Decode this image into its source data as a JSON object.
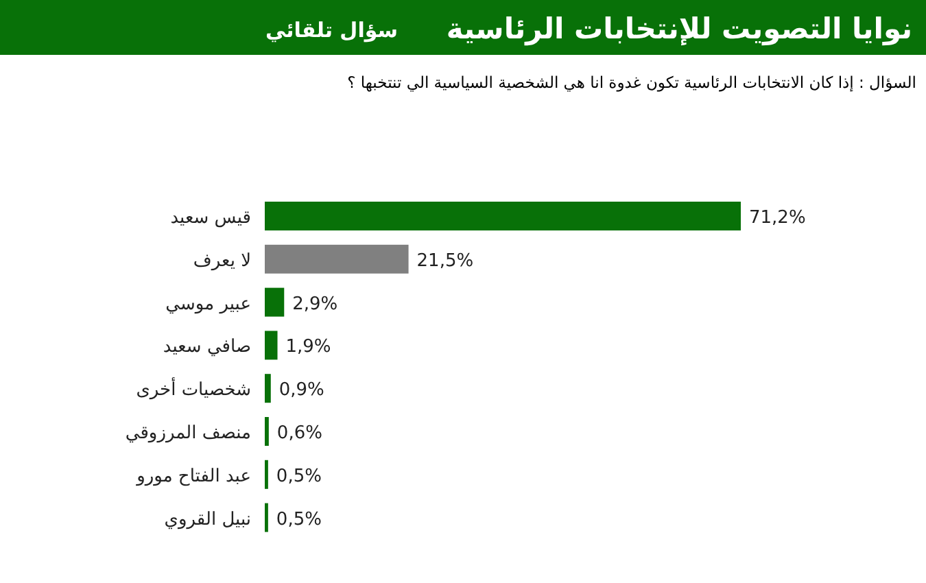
{
  "chart_data": {
    "type": "bar",
    "orientation": "horizontal",
    "title": "نوايا التصويت للإنتخابات الرئاسية",
    "subtitle": "السؤال : إذا كان الانتخابات الرئاسية تكون غدوة انا هي الشخصية السياسية الي تنتخبها ؟",
    "annotations": [
      "سؤال تلقائي"
    ],
    "categories": [
      "قيس سعيد",
      "لا يعرف",
      "عبير موسي",
      "صافي سعيد",
      "شخصيات أخرى",
      "منصف المرزوقي",
      "عبد الفتاح مورو",
      "نبيل القروي"
    ],
    "values": [
      71.2,
      21.5,
      2.9,
      1.9,
      0.9,
      0.6,
      0.5,
      0.5
    ],
    "colors": [
      "#087108",
      "#808080",
      "#087108",
      "#087108",
      "#087108",
      "#087108",
      "#087108",
      "#087108"
    ],
    "value_labels": [
      "71,2%",
      "21,5%",
      "2,9%",
      "1,9%",
      "0,9%",
      "0,6%",
      "0,5%",
      "0,5%"
    ]
  }
}
